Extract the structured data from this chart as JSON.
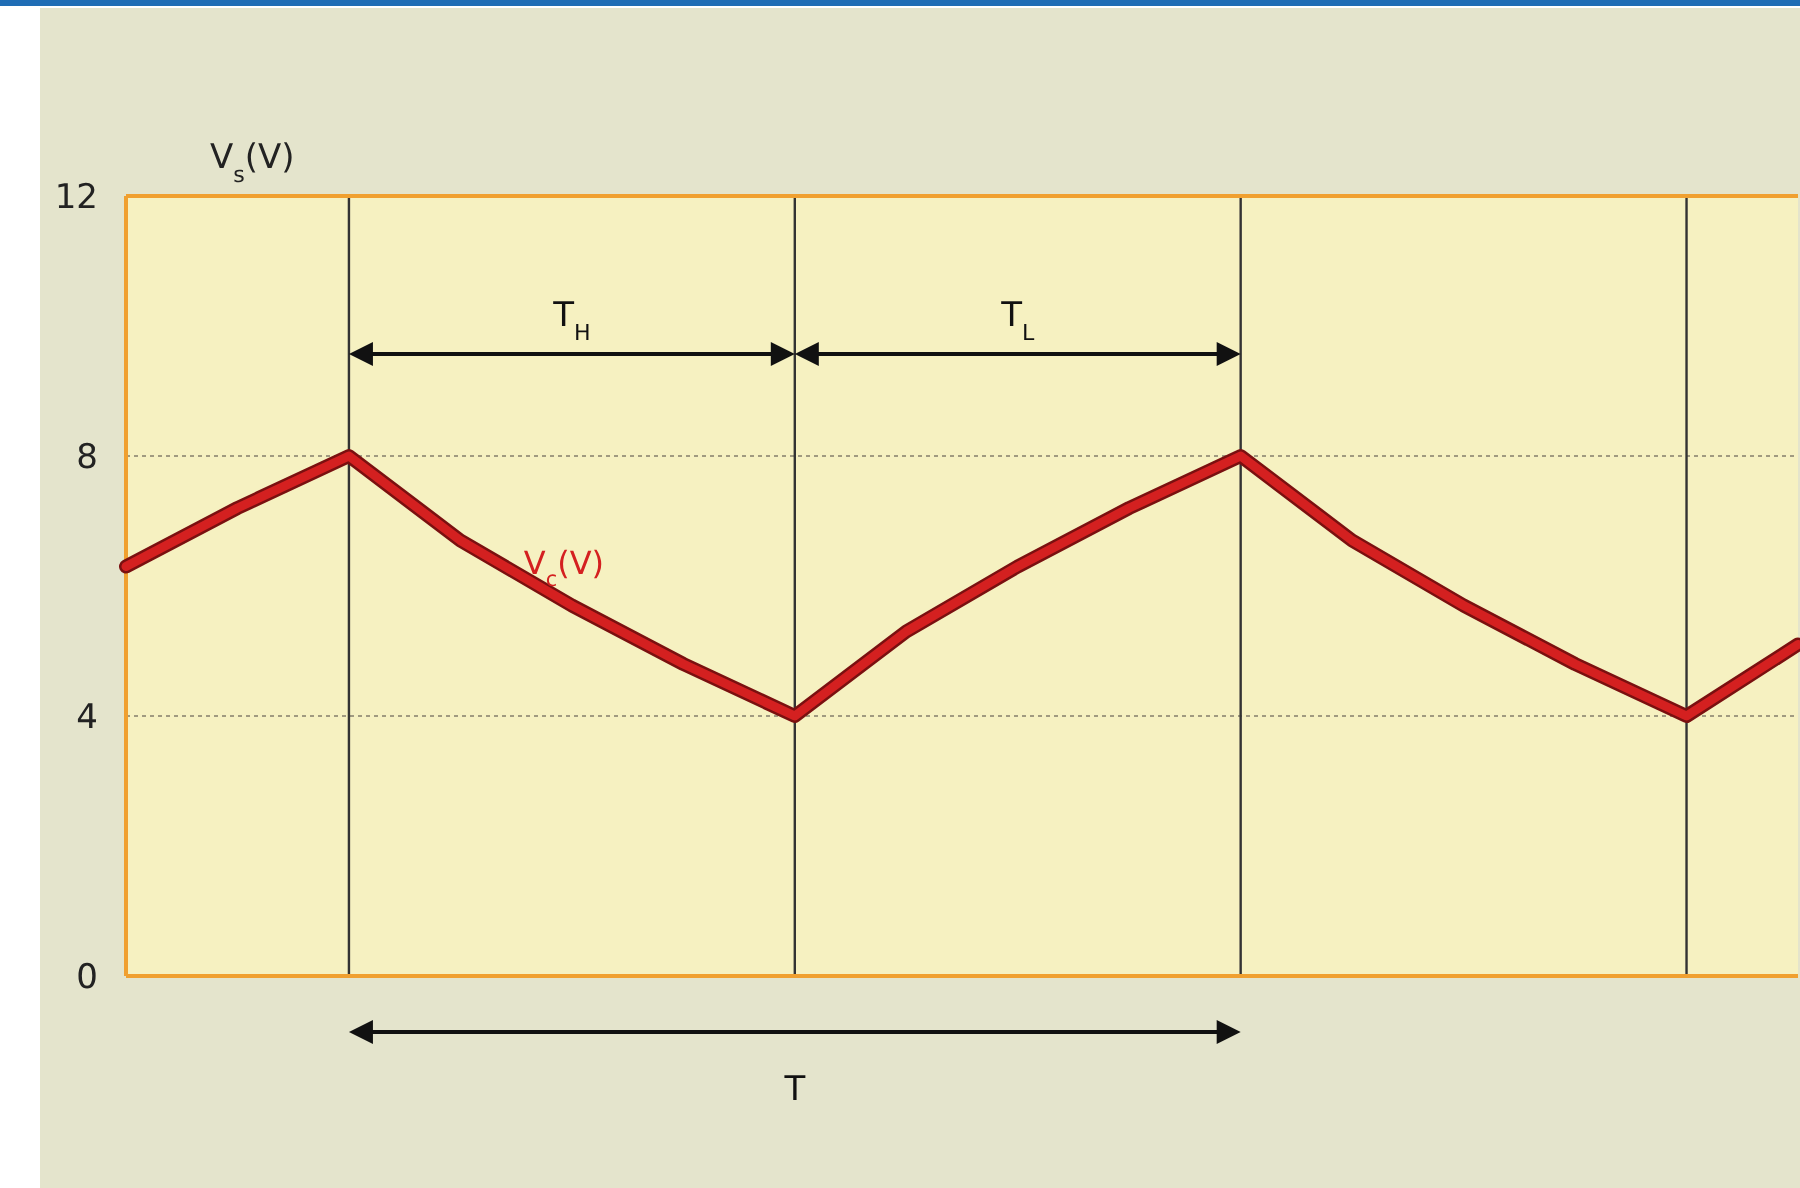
{
  "chart_data": {
    "type": "line",
    "ylabel": "V$_{s}$(V)",
    "categories": [
      null,
      null,
      null,
      null,
      null,
      null,
      null,
      null,
      null,
      null,
      null,
      null,
      null,
      null,
      null,
      null
    ],
    "ylim": [
      0,
      12
    ],
    "yticks": [
      0,
      4,
      8,
      12
    ],
    "tick_labels": "y",
    "grid": true,
    "series": [
      {
        "name": "V$_{c}$(V)",
        "color": "#d42020",
        "values": [
          6.3,
          7.2,
          8,
          6.7,
          5.7,
          4.8,
          4,
          5.3,
          6.3,
          7.2,
          8,
          6.7,
          5.7,
          4.8,
          4,
          5.1
        ]
      }
    ],
    "annotations": [
      "T$_{H}$",
      "T$_{L}$",
      "T"
    ]
  }
}
